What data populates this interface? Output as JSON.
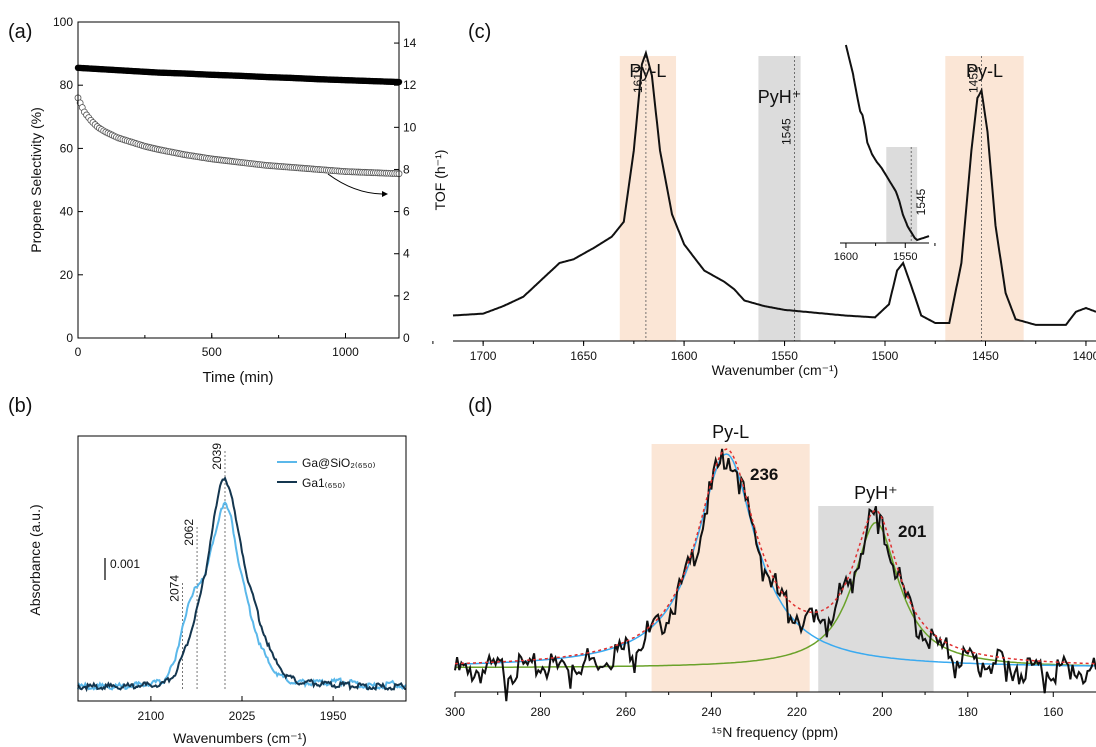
{
  "colors": {
    "axis": "#000000",
    "curve": "#111111",
    "gray_band": "#dcdcdc",
    "peach_band": "#fbe6d6",
    "ga_sio2": "#5bb8ea",
    "ga1": "#14364f",
    "fit_red": "#e03030",
    "fit_blue": "#3aaaf0",
    "fit_green": "#6aa22a",
    "peak_blue": "#2e9ee6",
    "peak_green": "#5a9a28"
  },
  "chart_data": [
    {
      "panel_label": "(a)",
      "type": "scatter",
      "xlabel": "Time (min)",
      "ylabel": "Propene Selectivity (%)",
      "y2label": "TOF (h⁻¹)",
      "xlim": [
        0,
        1200
      ],
      "ylim": [
        0,
        100
      ],
      "y2lim": [
        0,
        15
      ],
      "xticks": [
        "0",
        "500",
        "1000"
      ],
      "yticks": [
        "0",
        "20",
        "40",
        "60",
        "80",
        "100"
      ],
      "y2ticks": [
        "0",
        "2",
        "4",
        "6",
        "8",
        "10",
        "12",
        "14"
      ],
      "series": [
        {
          "role": "selectivity",
          "axis": "left",
          "marker": "filled",
          "x": [
            0,
            100,
            200,
            300,
            400,
            500,
            600,
            700,
            800,
            900,
            1000,
            1100,
            1200
          ],
          "y": [
            85.5,
            85,
            84.5,
            84,
            83.7,
            83.3,
            83,
            82.6,
            82.3,
            81.9,
            81.6,
            81.3,
            81
          ]
        },
        {
          "role": "tof",
          "axis": "right",
          "marker": "open",
          "x": [
            0,
            10,
            25,
            50,
            75,
            100,
            150,
            200,
            250,
            300,
            400,
            500,
            600,
            700,
            800,
            900,
            1000,
            1100,
            1200
          ],
          "y": [
            11.4,
            11.1,
            10.7,
            10.3,
            10.0,
            9.8,
            9.5,
            9.3,
            9.1,
            8.95,
            8.7,
            8.5,
            8.35,
            8.2,
            8.1,
            8.0,
            7.9,
            7.85,
            7.8
          ]
        }
      ]
    },
    {
      "panel_label": "(b)",
      "type": "line",
      "xlabel": "Wavenumbers (cm⁻¹)",
      "ylabel": "Absorbance (a.u.)",
      "xlim": [
        2160,
        1890
      ],
      "xticks": [
        "2100",
        "2025",
        "1950"
      ],
      "scale_bar": "0.001",
      "annotations": [
        "2074",
        "2062",
        "2039"
      ],
      "legend": [
        "Ga@SiO₂₍₆₅₀₎",
        "Ga1₍₆₅₀₎"
      ],
      "series": [
        {
          "name": "Ga@SiO₂₍₆₅₀₎",
          "x": [
            2160,
            2120,
            2090,
            2080,
            2074,
            2068,
            2062,
            2055,
            2048,
            2042,
            2039,
            2034,
            2028,
            2020,
            2010,
            2000,
            1990,
            1980,
            1960,
            1940,
            1920,
            1900,
            1890
          ],
          "y": [
            0.0,
            0.0,
            0.02,
            0.1,
            0.24,
            0.33,
            0.4,
            0.44,
            0.58,
            0.7,
            0.72,
            0.66,
            0.5,
            0.32,
            0.16,
            0.07,
            0.03,
            0.015,
            0.015,
            0.02,
            0.0,
            0.01,
            0.0
          ]
        },
        {
          "name": "Ga1₍₆₅₀₎",
          "x": [
            2160,
            2120,
            2090,
            2080,
            2074,
            2068,
            2062,
            2055,
            2048,
            2042,
            2039,
            2034,
            2028,
            2020,
            2010,
            2000,
            1990,
            1980,
            1960,
            1940,
            1920,
            1900,
            1890
          ],
          "y": [
            0.0,
            0.0,
            0.01,
            0.05,
            0.12,
            0.2,
            0.3,
            0.45,
            0.66,
            0.8,
            0.82,
            0.76,
            0.6,
            0.42,
            0.25,
            0.12,
            0.05,
            0.02,
            0.01,
            0.005,
            0.0,
            0.0,
            0.0
          ]
        }
      ]
    },
    {
      "panel_label": "(c)",
      "type": "line",
      "xlabel": "Wavenumber (cm⁻¹)",
      "xlim": [
        1715,
        1395
      ],
      "xticks": [
        "1700",
        "1650",
        "1600",
        "1550",
        "1500",
        "1450",
        "1400"
      ],
      "bands": [
        {
          "label": "Py-L",
          "from": 1632,
          "to": 1604,
          "peak": "1619"
        },
        {
          "label": "PyH⁺",
          "from": 1563,
          "to": 1542,
          "peak": "1545"
        },
        {
          "label": "Py-L",
          "from": 1470,
          "to": 1431,
          "peak": "1452"
        }
      ],
      "series": [
        {
          "x": [
            1715,
            1700,
            1690,
            1680,
            1670,
            1662,
            1655,
            1645,
            1636,
            1630,
            1625,
            1621,
            1619,
            1616,
            1612,
            1606,
            1600,
            1590,
            1580,
            1575,
            1570,
            1560,
            1550,
            1540,
            1520,
            1505,
            1498,
            1494,
            1491,
            1487,
            1482,
            1475,
            1468,
            1462,
            1457,
            1454,
            1452,
            1449,
            1445,
            1440,
            1435,
            1425,
            1410,
            1405,
            1400,
            1395
          ],
          "y": [
            0.06,
            0.065,
            0.085,
            0.11,
            0.16,
            0.2,
            0.21,
            0.24,
            0.27,
            0.31,
            0.5,
            0.73,
            0.76,
            0.7,
            0.5,
            0.33,
            0.25,
            0.18,
            0.15,
            0.13,
            0.1,
            0.085,
            0.075,
            0.07,
            0.06,
            0.055,
            0.09,
            0.18,
            0.2,
            0.14,
            0.06,
            0.04,
            0.04,
            0.2,
            0.5,
            0.64,
            0.66,
            0.55,
            0.3,
            0.12,
            0.05,
            0.035,
            0.035,
            0.07,
            0.08,
            0.07
          ]
        }
      ],
      "inset": {
        "xlim": [
          1605,
          1530
        ],
        "xticks": [
          "1600",
          "1550"
        ],
        "band": {
          "from": 1566,
          "to": 1540,
          "peak": "1545"
        },
        "x": [
          1600,
          1594,
          1590,
          1588,
          1586,
          1584,
          1582,
          1578,
          1574,
          1570,
          1566,
          1562,
          1558,
          1555,
          1552,
          1548,
          1545,
          1542,
          1540,
          1535,
          1530
        ],
        "y": [
          1.0,
          0.85,
          0.72,
          0.66,
          0.64,
          0.58,
          0.5,
          0.44,
          0.4,
          0.37,
          0.33,
          0.29,
          0.25,
          0.2,
          0.13,
          0.07,
          0.04,
          0.01,
          0.0,
          0.01,
          0.02
        ]
      }
    },
    {
      "panel_label": "(d)",
      "type": "line",
      "xlabel": "¹⁵N frequency (ppm)",
      "xlim": [
        300,
        150
      ],
      "xticks": [
        "300",
        "280",
        "260",
        "240",
        "220",
        "200",
        "180",
        "160"
      ],
      "bands": [
        {
          "label": "Py-L",
          "from": 254,
          "to": 217,
          "peak": "236"
        },
        {
          "label": "PyH⁺",
          "from": 215,
          "to": 188,
          "peak": "201"
        }
      ],
      "peaks": [
        {
          "center": 236.5,
          "height": 1.0,
          "width": 8.5,
          "label": "236"
        },
        {
          "center": 201.5,
          "height": 0.68,
          "width": 6.5,
          "label": "201"
        }
      ]
    }
  ]
}
